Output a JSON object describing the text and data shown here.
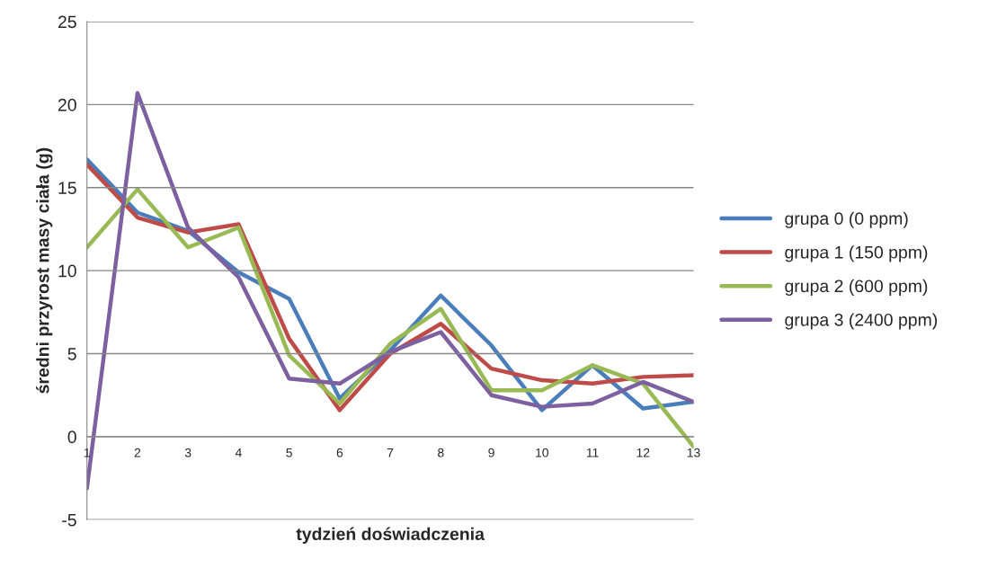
{
  "chart_data": {
    "type": "line",
    "xlabel": "tydzień doświadczenia",
    "ylabel": "średni przyrost masy ciała (g)",
    "categories": [
      "1",
      "2",
      "3",
      "4",
      "5",
      "6",
      "7",
      "8",
      "9",
      "10",
      "11",
      "12",
      "13"
    ],
    "series": [
      {
        "name": "grupa 0 (0 ppm)",
        "color": "#4a7ebb",
        "values": [
          16.7,
          13.5,
          12.4,
          9.9,
          8.3,
          2.3,
          5.2,
          8.5,
          5.5,
          1.6,
          4.3,
          1.7,
          2.1
        ]
      },
      {
        "name": "grupa 1 (150 ppm)",
        "color": "#be4b48",
        "values": [
          16.4,
          13.2,
          12.3,
          12.8,
          5.9,
          1.6,
          5.0,
          6.8,
          4.1,
          3.4,
          3.2,
          3.6,
          3.7
        ]
      },
      {
        "name": "grupa 2 (600 ppm)",
        "color": "#98b954",
        "values": [
          11.4,
          14.9,
          11.4,
          12.6,
          4.9,
          2.0,
          5.6,
          7.7,
          2.8,
          2.8,
          4.3,
          3.2,
          -0.6
        ]
      },
      {
        "name": "grupa 3 (2400 ppm)",
        "color": "#7d60a0",
        "values": [
          -3.1,
          20.7,
          12.6,
          9.6,
          3.5,
          3.2,
          5.1,
          6.3,
          2.5,
          1.8,
          2.0,
          3.3,
          2.1
        ]
      }
    ],
    "ylim": [
      -5,
      25
    ],
    "yticks": [
      -5,
      0,
      5,
      10,
      15,
      20,
      25
    ],
    "grid": "y",
    "legend": "right",
    "marker": "none",
    "line_style": "solid"
  }
}
